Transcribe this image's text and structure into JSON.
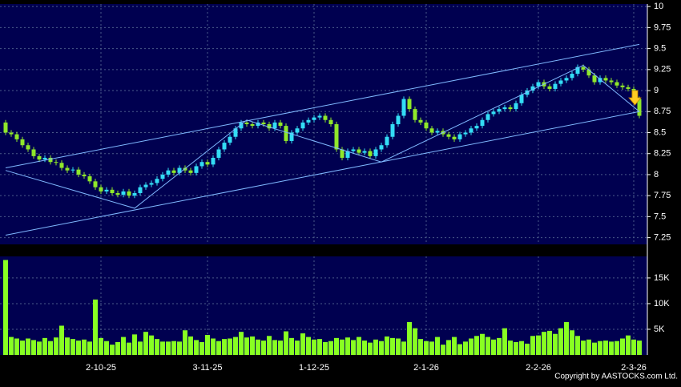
{
  "chart_data": {
    "type": "candlestick",
    "copyright": "Copyright by AASTOCKS.com Ltd.",
    "up_color": "#33ddf5",
    "down_color": "#8fe82a",
    "volume_color": "#88ff22",
    "line_color": "#7fb8ff",
    "grid": true,
    "ylim": [
      7.17,
      10.03
    ],
    "yticks": [
      7.25,
      7.5,
      7.75,
      8,
      8.25,
      8.5,
      8.75,
      9,
      9.25,
      9.5,
      9.75,
      10
    ],
    "categories": [
      null,
      null,
      null,
      null,
      null,
      null,
      null,
      null,
      null,
      null,
      null,
      null,
      null,
      null,
      null,
      null,
      null,
      "2-10-25",
      null,
      null,
      null,
      null,
      null,
      null,
      null,
      null,
      null,
      null,
      null,
      null,
      null,
      null,
      null,
      null,
      null,
      null,
      "3-11-25",
      null,
      null,
      null,
      null,
      null,
      null,
      null,
      null,
      null,
      null,
      null,
      null,
      null,
      null,
      null,
      null,
      null,
      null,
      "1-12-25",
      null,
      null,
      null,
      null,
      null,
      null,
      null,
      null,
      null,
      null,
      null,
      null,
      null,
      null,
      null,
      null,
      null,
      null,
      null,
      "2-1-26",
      null,
      null,
      null,
      null,
      null,
      null,
      null,
      null,
      null,
      null,
      null,
      null,
      null,
      null,
      null,
      null,
      null,
      null,
      null,
      "2-2-26",
      null,
      null,
      null,
      null,
      null,
      null,
      null,
      null,
      null,
      null,
      null,
      null,
      null,
      null,
      null,
      null,
      "2-3-26",
      null
    ],
    "open": [
      8.62,
      8.5,
      8.48,
      8.42,
      8.35,
      8.3,
      8.22,
      8.18,
      8.2,
      8.15,
      8.14,
      8.08,
      8.05,
      8.06,
      8.0,
      7.98,
      7.92,
      7.85,
      7.8,
      7.82,
      7.78,
      7.76,
      7.8,
      7.75,
      7.78,
      7.85,
      7.88,
      7.9,
      7.95,
      8.0,
      8.05,
      8.02,
      8.08,
      8.05,
      8.02,
      8.1,
      8.15,
      8.12,
      8.2,
      8.3,
      8.38,
      8.45,
      8.55,
      8.62,
      8.6,
      8.58,
      8.62,
      8.6,
      8.55,
      8.62,
      8.58,
      8.4,
      8.5,
      8.55,
      8.62,
      8.65,
      8.68,
      8.7,
      8.65,
      8.6,
      8.3,
      8.2,
      8.28,
      8.3,
      8.26,
      8.28,
      8.22,
      8.3,
      8.35,
      8.45,
      8.6,
      8.7,
      8.9,
      8.78,
      8.65,
      8.62,
      8.55,
      8.5,
      8.52,
      8.48,
      8.45,
      8.42,
      8.48,
      8.5,
      8.55,
      8.58,
      8.65,
      8.72,
      8.75,
      8.78,
      8.8,
      8.78,
      8.85,
      8.95,
      9.0,
      9.05,
      9.1,
      9.05,
      9.02,
      9.08,
      9.12,
      9.15,
      9.2,
      9.28,
      9.25,
      9.18,
      9.1,
      9.15,
      9.12,
      9.1,
      9.06,
      9.04,
      9.02,
      8.9
    ],
    "high": [
      8.65,
      8.53,
      8.51,
      8.45,
      8.38,
      8.33,
      8.25,
      8.23,
      8.23,
      8.18,
      8.17,
      8.11,
      8.09,
      8.09,
      8.03,
      8.01,
      7.95,
      7.88,
      7.85,
      7.85,
      7.81,
      7.83,
      7.83,
      7.81,
      7.88,
      7.91,
      7.93,
      7.98,
      8.03,
      8.08,
      8.08,
      8.11,
      8.11,
      8.08,
      8.13,
      8.18,
      8.18,
      8.23,
      8.33,
      8.41,
      8.48,
      8.58,
      8.65,
      8.65,
      8.63,
      8.65,
      8.65,
      8.63,
      8.65,
      8.65,
      8.61,
      8.53,
      8.58,
      8.65,
      8.68,
      8.71,
      8.73,
      8.73,
      8.68,
      8.63,
      8.33,
      8.31,
      8.33,
      8.33,
      8.31,
      8.31,
      8.33,
      8.38,
      8.48,
      8.63,
      8.73,
      8.93,
      8.93,
      8.81,
      8.68,
      8.65,
      8.58,
      8.55,
      8.55,
      8.51,
      8.48,
      8.51,
      8.53,
      8.58,
      8.61,
      8.68,
      8.75,
      8.78,
      8.81,
      8.83,
      8.83,
      8.88,
      8.98,
      9.03,
      9.08,
      9.13,
      9.13,
      9.08,
      9.11,
      9.15,
      9.18,
      9.23,
      9.31,
      9.31,
      9.28,
      9.21,
      9.18,
      9.18,
      9.15,
      9.13,
      9.09,
      9.07,
      9.05,
      8.93
    ],
    "low": [
      8.47,
      8.45,
      8.39,
      8.32,
      8.27,
      8.19,
      8.15,
      8.15,
      8.12,
      8.11,
      8.05,
      8.02,
      8.02,
      7.97,
      7.95,
      7.89,
      7.82,
      7.77,
      7.77,
      7.75,
      7.73,
      7.73,
      7.72,
      7.72,
      7.75,
      7.82,
      7.85,
      7.87,
      7.92,
      7.97,
      7.99,
      7.99,
      8.02,
      7.99,
      7.99,
      8.07,
      8.09,
      8.09,
      8.17,
      8.27,
      8.35,
      8.42,
      8.52,
      8.57,
      8.55,
      8.55,
      8.57,
      8.52,
      8.52,
      8.55,
      8.37,
      8.37,
      8.47,
      8.52,
      8.59,
      8.62,
      8.65,
      8.62,
      8.57,
      8.27,
      8.17,
      8.17,
      8.25,
      8.23,
      8.23,
      8.19,
      8.19,
      8.27,
      8.32,
      8.42,
      8.57,
      8.67,
      8.75,
      8.62,
      8.59,
      8.52,
      8.47,
      8.47,
      8.45,
      8.42,
      8.39,
      8.39,
      8.45,
      8.47,
      8.52,
      8.55,
      8.62,
      8.69,
      8.72,
      8.75,
      8.75,
      8.75,
      8.82,
      8.92,
      8.97,
      9.02,
      9.02,
      8.99,
      8.99,
      9.05,
      9.09,
      9.12,
      9.17,
      9.22,
      9.15,
      9.07,
      9.07,
      9.09,
      9.07,
      9.03,
      9.01,
      8.99,
      8.87,
      8.67
    ],
    "close": [
      8.5,
      8.48,
      8.42,
      8.35,
      8.3,
      8.22,
      8.18,
      8.2,
      8.15,
      8.14,
      8.08,
      8.05,
      8.06,
      8.0,
      7.98,
      7.92,
      7.85,
      7.8,
      7.82,
      7.78,
      7.76,
      7.8,
      7.75,
      7.78,
      7.85,
      7.88,
      7.9,
      7.95,
      8.0,
      8.05,
      8.02,
      8.08,
      8.05,
      8.02,
      8.1,
      8.15,
      8.12,
      8.2,
      8.3,
      8.38,
      8.45,
      8.55,
      8.62,
      8.6,
      8.58,
      8.62,
      8.6,
      8.55,
      8.62,
      8.58,
      8.4,
      8.5,
      8.55,
      8.62,
      8.65,
      8.68,
      8.7,
      8.65,
      8.6,
      8.3,
      8.2,
      8.28,
      8.3,
      8.26,
      8.28,
      8.22,
      8.3,
      8.35,
      8.45,
      8.6,
      8.7,
      8.9,
      8.78,
      8.65,
      8.62,
      8.55,
      8.5,
      8.52,
      8.48,
      8.45,
      8.42,
      8.48,
      8.5,
      8.55,
      8.58,
      8.65,
      8.72,
      8.75,
      8.78,
      8.8,
      8.78,
      8.85,
      8.95,
      9.0,
      9.05,
      9.1,
      9.05,
      9.02,
      9.08,
      9.12,
      9.15,
      9.2,
      9.28,
      9.25,
      9.18,
      9.1,
      9.15,
      9.12,
      9.1,
      9.06,
      9.04,
      9.02,
      8.9,
      8.7
    ],
    "trendlines": [
      {
        "points": [
          [
            0,
            8.08
          ],
          [
            113,
            9.55
          ]
        ]
      },
      {
        "points": [
          [
            0,
            7.28
          ],
          [
            113,
            8.75
          ]
        ]
      },
      {
        "points": [
          [
            0,
            8.05
          ],
          [
            23,
            7.6
          ],
          [
            43,
            8.65
          ],
          [
            67,
            8.15
          ],
          [
            103,
            9.3
          ],
          [
            113,
            8.75
          ]
        ]
      }
    ],
    "volume": {
      "values": [
        18500,
        3500,
        3200,
        2800,
        3200,
        2900,
        2600,
        3300,
        2700,
        3400,
        5700,
        3400,
        3100,
        2800,
        3000,
        2600,
        10800,
        3300,
        2700,
        2000,
        2500,
        3500,
        2400,
        4000,
        2600,
        4500,
        3800,
        3100,
        2600,
        2600,
        2700,
        2600,
        4800,
        3600,
        2900,
        2500,
        3900,
        3200,
        2700,
        3100,
        3200,
        3500,
        4500,
        3400,
        3600,
        3000,
        2800,
        3700,
        2900,
        2800,
        4600,
        3300,
        2800,
        4200,
        3500,
        3000,
        3100,
        2500,
        2700,
        3300,
        3000,
        3400,
        2900,
        3500,
        2800,
        2400,
        3000,
        2700,
        3600,
        3300,
        3200,
        2600,
        6400,
        5200,
        3100,
        2700,
        2600,
        3500,
        2000,
        2900,
        3500,
        2100,
        2600,
        3200,
        3700,
        4100,
        3500,
        3000,
        3300,
        5200,
        2800,
        2500,
        2700,
        2200,
        3700,
        3800,
        4500,
        4700,
        4100,
        5200,
        6400,
        4800,
        3700,
        2800,
        3000,
        2400,
        2700,
        2800,
        2600,
        2700,
        3200,
        3800,
        3000,
        2800
      ],
      "ylim": [
        0,
        19200
      ],
      "yticks": [
        {
          "value": 5000,
          "label": "5K"
        },
        {
          "value": 10000,
          "label": "10K"
        },
        {
          "value": 15000,
          "label": "15K"
        }
      ]
    }
  }
}
